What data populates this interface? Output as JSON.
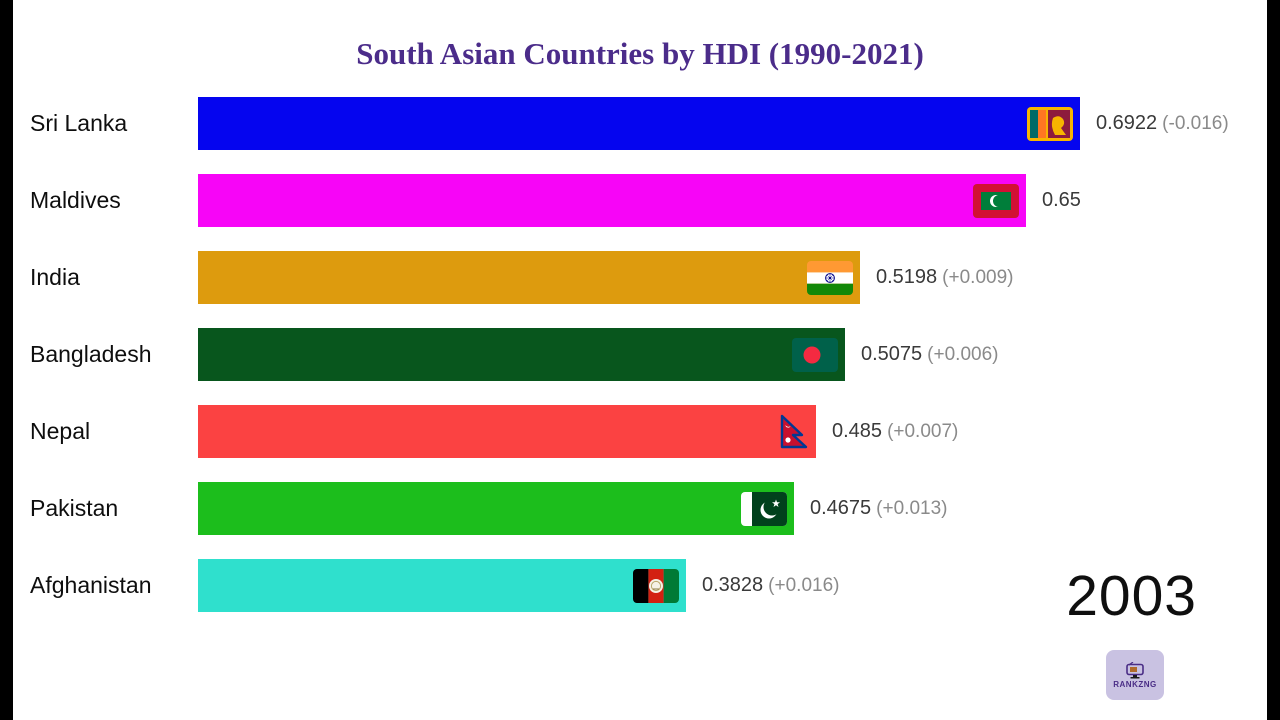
{
  "letterbox_color": "#000000",
  "title_color": "#4b2c8a",
  "watermark": {
    "name": "RANKZNG"
  },
  "chart_data": {
    "type": "bar",
    "orientation": "horizontal",
    "title": "South Asian Countries by HDI (1990-2021)",
    "year": "2003",
    "value_domain": [
      0,
      0.6922
    ],
    "legend": "none",
    "grid": false,
    "bars": [
      {
        "country": "Sri Lanka",
        "value": 0.6922,
        "value_label": "0.6922",
        "change_label": "(-0.016)",
        "color": "#0505ef",
        "flag_icon": "sri-lanka-flag-icon"
      },
      {
        "country": "Maldives",
        "value": 0.65,
        "value_label": "0.65",
        "change_label": "",
        "color": "#f705f7",
        "flag_icon": "maldives-flag-icon"
      },
      {
        "country": "India",
        "value": 0.5198,
        "value_label": "0.5198",
        "change_label": "(+0.009)",
        "color": "#dd9b0e",
        "flag_icon": "india-flag-icon"
      },
      {
        "country": "Bangladesh",
        "value": 0.5075,
        "value_label": "0.5075",
        "change_label": "(+0.006)",
        "color": "#08561d",
        "flag_icon": "bangladesh-flag-icon"
      },
      {
        "country": "Nepal",
        "value": 0.485,
        "value_label": "0.485",
        "change_label": "(+0.007)",
        "color": "#fb4242",
        "flag_icon": "nepal-flag-icon"
      },
      {
        "country": "Pakistan",
        "value": 0.4675,
        "value_label": "0.4675",
        "change_label": "(+0.013)",
        "color": "#1cbe1c",
        "flag_icon": "pakistan-flag-icon"
      },
      {
        "country": "Afghanistan",
        "value": 0.3828,
        "value_label": "0.3828",
        "change_label": "(+0.016)",
        "color": "#2fe0cd",
        "flag_icon": "afghanistan-flag-icon"
      }
    ]
  }
}
